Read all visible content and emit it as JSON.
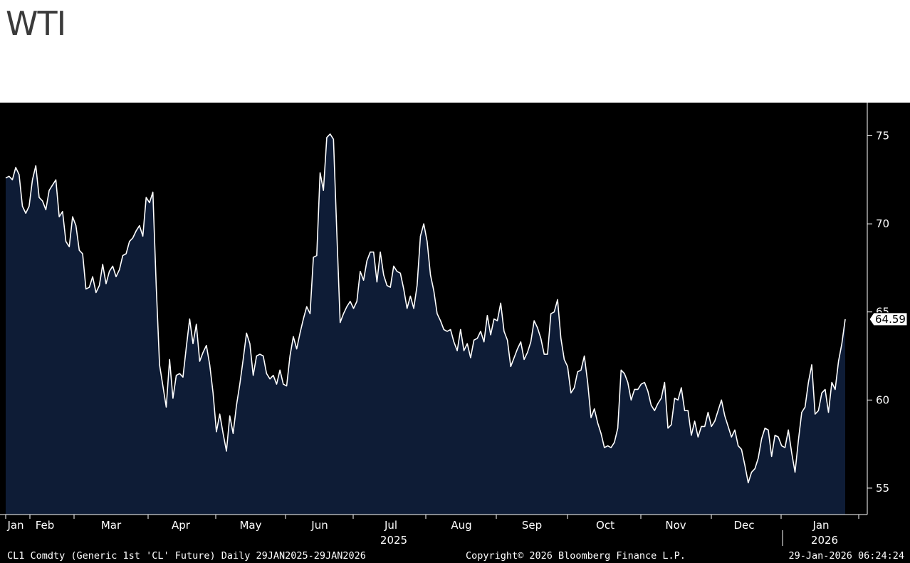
{
  "header": {
    "title": "WTI"
  },
  "footer": {
    "left": "CL1 Comdty (Generic 1st 'CL' Future) Daily 29JAN2025-29JAN2026",
    "center": "Copyright© 2026 Bloomberg Finance L.P.",
    "right": "29-Jan-2026 06:24:24"
  },
  "colors": {
    "background": "#000000",
    "fill": "#0e1c36",
    "line": "#ffffff"
  },
  "chart_data": {
    "type": "area",
    "title": "WTI",
    "ylim": [
      53.5,
      76.8
    ],
    "yticks": [
      55,
      60,
      65,
      70,
      75
    ],
    "last_value_label": "64.59",
    "x_year_labels": [
      "2025",
      "2026"
    ],
    "months": [
      "Jan",
      "Feb",
      "Mar",
      "Apr",
      "May",
      "Jun",
      "Jul",
      "Aug",
      "Sep",
      "Oct",
      "Nov",
      "Dec",
      "Jan"
    ],
    "grid": false,
    "values": [
      72.6,
      72.7,
      72.5,
      73.2,
      72.8,
      71.0,
      70.6,
      71.0,
      72.5,
      73.3,
      71.5,
      71.3,
      70.8,
      71.9,
      72.2,
      72.5,
      70.4,
      70.7,
      69.0,
      68.7,
      70.4,
      69.9,
      68.5,
      68.3,
      66.3,
      66.4,
      67.0,
      66.1,
      66.5,
      67.7,
      66.6,
      67.3,
      67.6,
      67.0,
      67.4,
      68.2,
      68.3,
      69.0,
      69.2,
      69.6,
      69.9,
      69.3,
      71.5,
      71.2,
      71.8,
      66.5,
      62.0,
      60.8,
      59.6,
      62.3,
      60.1,
      61.4,
      61.5,
      61.3,
      63.0,
      64.6,
      63.2,
      64.3,
      62.2,
      62.7,
      63.1,
      62.0,
      60.4,
      58.2,
      59.2,
      58.1,
      57.1,
      59.1,
      58.1,
      59.7,
      60.9,
      62.3,
      63.8,
      63.2,
      61.4,
      62.5,
      62.6,
      62.5,
      61.5,
      61.2,
      61.4,
      60.9,
      61.7,
      60.9,
      60.8,
      62.5,
      63.6,
      62.9,
      63.8,
      64.6,
      65.3,
      64.9,
      68.1,
      68.2,
      72.9,
      71.9,
      74.9,
      75.1,
      74.8,
      69.5,
      64.4,
      64.9,
      65.3,
      65.6,
      65.2,
      65.6,
      67.3,
      66.8,
      67.9,
      68.4,
      68.4,
      66.7,
      68.4,
      67.1,
      66.5,
      66.4,
      67.6,
      67.3,
      67.2,
      66.3,
      65.2,
      65.9,
      65.2,
      66.5,
      69.3,
      70.0,
      69.0,
      67.1,
      66.2,
      64.9,
      64.5,
      64.0,
      63.9,
      64.0,
      63.3,
      62.8,
      64.0,
      62.8,
      63.2,
      62.4,
      63.4,
      63.5,
      63.9,
      63.3,
      64.8,
      63.7,
      64.6,
      64.5,
      65.5,
      63.9,
      63.4,
      61.9,
      62.4,
      62.9,
      63.3,
      62.3,
      62.7,
      63.3,
      64.5,
      64.1,
      63.5,
      62.6,
      62.6,
      64.9,
      65.0,
      65.7,
      63.5,
      62.3,
      61.9,
      60.4,
      60.7,
      61.6,
      61.7,
      62.5,
      61.0,
      59.0,
      59.5,
      58.7,
      58.1,
      57.3,
      57.4,
      57.3,
      57.6,
      58.4,
      61.7,
      61.5,
      61.0,
      60.0,
      60.6,
      60.6,
      60.9,
      61.0,
      60.5,
      59.7,
      59.4,
      59.8,
      60.1,
      61.0,
      58.4,
      58.6,
      60.1,
      60.0,
      60.7,
      59.4,
      59.4,
      58.0,
      58.8,
      57.9,
      58.5,
      58.5,
      59.3,
      58.5,
      58.8,
      59.4,
      60.0,
      59.1,
      58.5,
      57.9,
      58.3,
      57.4,
      57.2,
      56.3,
      55.3,
      55.9,
      56.1,
      56.7,
      57.8,
      58.4,
      58.3,
      56.8,
      58.0,
      57.9,
      57.4,
      57.3,
      58.3,
      57.0,
      55.9,
      57.7,
      59.3,
      59.6,
      61.0,
      62.0,
      59.2,
      59.4,
      60.4,
      60.6,
      59.3,
      61.0,
      60.6,
      62.2,
      63.2,
      64.59
    ]
  }
}
